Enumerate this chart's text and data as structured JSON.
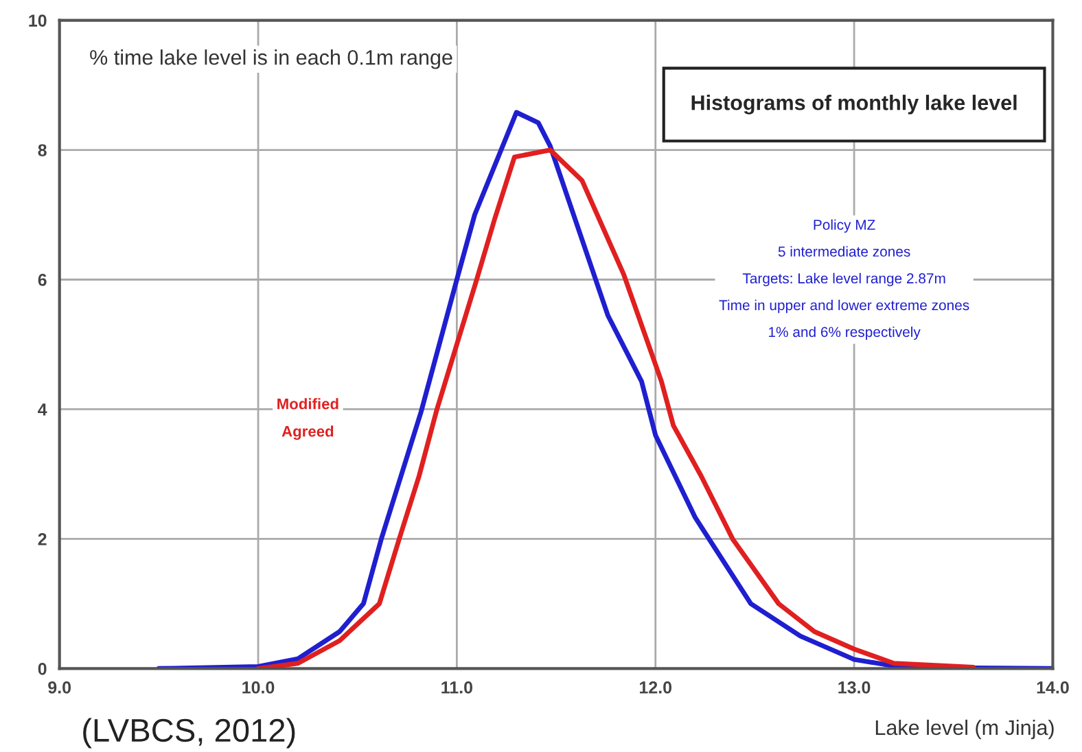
{
  "chart_data": {
    "type": "line",
    "title": "Histograms of monthly lake level",
    "ylabel": "% time lake level is in each 0.1m range",
    "xlabel": "Lake level (m Jinja)",
    "annotations": [
      "5 intermediate zones",
      "Targets: Lake level range 2.87m",
      "Time in upper and lower extreme zones",
      "1% and 6% respectively",
      "(LVBCS, 2012)"
    ],
    "xlim": [
      9.0,
      14.0
    ],
    "ylim": [
      0,
      10
    ],
    "xticks": [
      {
        "value": 9,
        "label": "9.0"
      },
      {
        "value": 10,
        "label": "10.0"
      },
      {
        "value": 11,
        "label": "11.0"
      },
      {
        "value": 12,
        "label": "12.0"
      },
      {
        "value": 13,
        "label": "13.0"
      },
      {
        "value": 14,
        "label": "14.0"
      }
    ],
    "yticks": [
      0,
      2,
      4,
      6,
      8,
      10
    ],
    "grid": true,
    "marker": "none",
    "line_style": "solid",
    "series": [
      {
        "name": "Policy MZ",
        "color": "#1f1fd0",
        "x": [
          9.5,
          10.0,
          10.2,
          10.41,
          10.53,
          10.62,
          10.82,
          11.0,
          11.09,
          11.3,
          11.41,
          11.47,
          11.76,
          11.93,
          12.0,
          12.2,
          12.48,
          12.73,
          13.0,
          13.2,
          13.6,
          14.0
        ],
        "values": [
          0,
          0.03,
          0.15,
          0.57,
          1.0,
          2.0,
          3.96,
          6.0,
          7.0,
          8.58,
          8.42,
          8.06,
          5.45,
          4.43,
          3.6,
          2.33,
          1.0,
          0.5,
          0.14,
          0.04,
          0.01,
          0
        ]
      },
      {
        "name": "Modified Agreed",
        "color": "#e02020",
        "x": [
          10.0,
          10.2,
          10.41,
          10.61,
          10.71,
          10.81,
          10.9,
          11.1,
          11.19,
          11.29,
          11.47,
          11.63,
          11.84,
          12.03,
          12.09,
          12.23,
          12.39,
          12.62,
          12.8,
          13.0,
          13.2,
          13.6
        ],
        "values": [
          0,
          0.08,
          0.43,
          1.0,
          2.0,
          2.97,
          4.0,
          6.0,
          6.93,
          7.89,
          8.0,
          7.53,
          6.08,
          4.43,
          3.75,
          2.97,
          1.99,
          1.0,
          0.57,
          0.3,
          0.08,
          0.02
        ]
      }
    ]
  }
}
